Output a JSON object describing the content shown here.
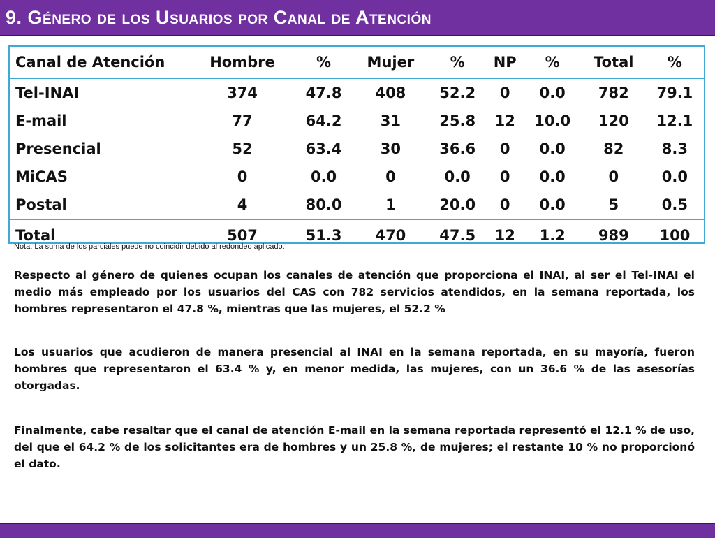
{
  "header": {
    "title": "9. Género de los Usuarios por Canal de Atención"
  },
  "table": {
    "columns": [
      "Canal de Atención",
      "Hombre",
      "%",
      "Mujer",
      "%",
      "NP",
      "%",
      "Total",
      "%"
    ],
    "rows": [
      [
        "Tel-INAI",
        "374",
        "47.8",
        "408",
        "52.2",
        "0",
        "0.0",
        "782",
        "79.1"
      ],
      [
        "E-mail",
        "77",
        "64.2",
        "31",
        "25.8",
        "12",
        "10.0",
        "120",
        "12.1"
      ],
      [
        "Presencial",
        "52",
        "63.4",
        "30",
        "36.6",
        "0",
        "0.0",
        "82",
        "8.3"
      ],
      [
        "MiCAS",
        "0",
        "0.0",
        "0",
        "0.0",
        "0",
        "0.0",
        "0",
        "0.0"
      ],
      [
        "Postal",
        "4",
        "80.0",
        "1",
        "20.0",
        "0",
        "0.0",
        "5",
        "0.5"
      ]
    ],
    "total": [
      "Total",
      "507",
      "51.3",
      "470",
      "47.5",
      "12",
      "1.2",
      "989",
      "100"
    ]
  },
  "note": "Nota: La suma de los parciales puede no coincidir debido al redondeo aplicado.",
  "paragraphs": [
    "Respecto al género de quienes ocupan los canales de atención que proporciona el INAI, al ser el Tel-INAI el medio más empleado por los usuarios del CAS con 782 servicios atendidos, en la semana reportada, los hombres representaron el 47.8 %, mientras que las mujeres, el 52.2 %",
    "Los usuarios que acudieron de manera presencial al INAI en la semana reportada, en su mayoría, fueron hombres que representaron el 63.4 % y, en menor medida, las mujeres, con un 36.6 % de las asesorías otorgadas.",
    "Finalmente, cabe resaltar que el canal de atención E-mail en la semana reportada representó el 12.1 % de uso, del que el 64.2 % de los solicitantes era de hombres y un 25.8 %, de mujeres; el restante 10 % no proporcionó el dato."
  ],
  "colors": {
    "accent": "#7030a0",
    "table_border": "#3fa9d6"
  }
}
